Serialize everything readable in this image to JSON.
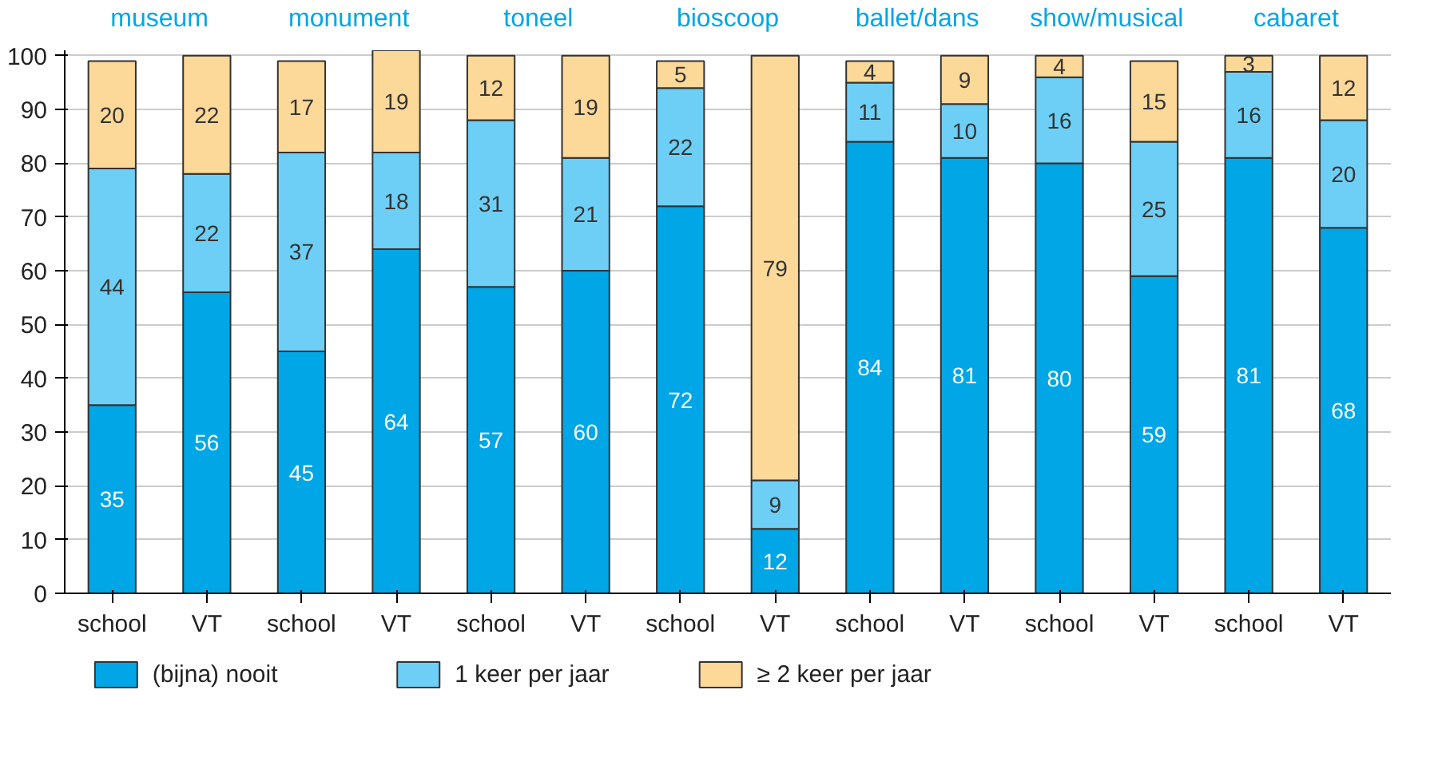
{
  "chart_data": {
    "type": "bar",
    "stacked": true,
    "categories": [
      "school",
      "VT",
      "school",
      "VT",
      "school",
      "VT",
      "school",
      "VT",
      "school",
      "VT",
      "school",
      "VT",
      "school",
      "VT"
    ],
    "series": [
      {
        "name": "(bijna) nooit",
        "color": "#00a6e6",
        "values": [
          35,
          56,
          45,
          64,
          57,
          60,
          72,
          12,
          84,
          81,
          80,
          59,
          81,
          68
        ]
      },
      {
        "name": "1 keer per jaar",
        "color": "#6ecff6",
        "values": [
          44,
          22,
          37,
          18,
          31,
          21,
          22,
          9,
          11,
          10,
          16,
          25,
          16,
          20
        ]
      },
      {
        "name": "≥ 2 keer per jaar",
        "color": "#fcd899",
        "values": [
          20,
          22,
          17,
          19,
          12,
          19,
          5,
          79,
          4,
          9,
          4,
          15,
          3,
          12
        ]
      }
    ],
    "annotations": [
      "museum",
      "monument",
      "toneel",
      "bioscoop",
      "ballet/dans",
      "show/musical",
      "cabaret"
    ],
    "ylim": [
      0,
      101
    ],
    "yticks": [
      0,
      10,
      20,
      30,
      40,
      50,
      60,
      70,
      80,
      90,
      100
    ],
    "grid": "y",
    "legend": "bottom left",
    "data_labels": true
  }
}
